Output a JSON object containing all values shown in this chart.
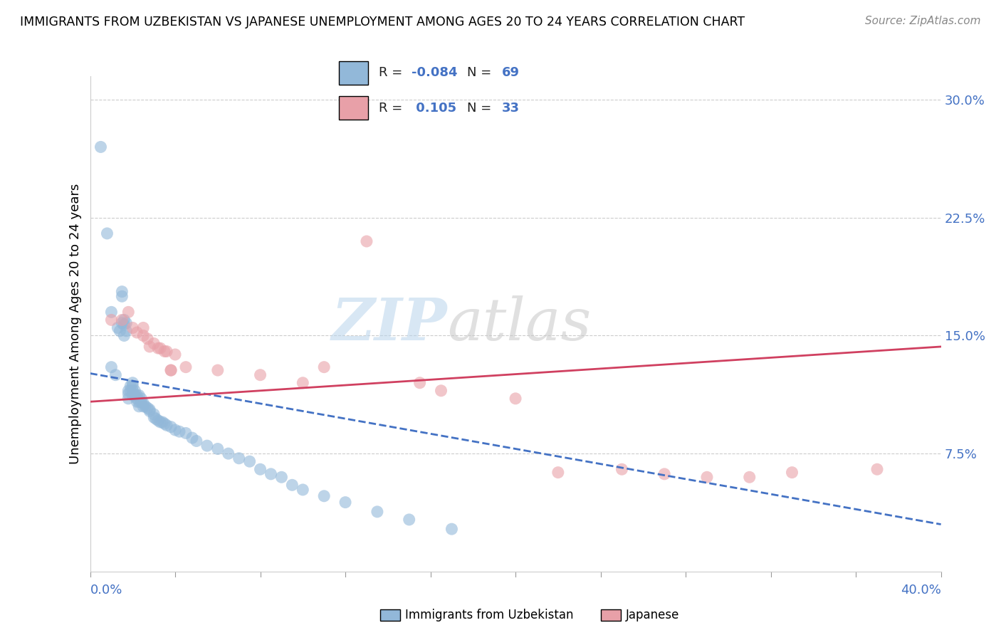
{
  "title": "IMMIGRANTS FROM UZBEKISTAN VS JAPANESE UNEMPLOYMENT AMONG AGES 20 TO 24 YEARS CORRELATION CHART",
  "source": "Source: ZipAtlas.com",
  "ylabel": "Unemployment Among Ages 20 to 24 years",
  "ytick_vals": [
    0.075,
    0.15,
    0.225,
    0.3
  ],
  "ytick_labels": [
    "7.5%",
    "15.0%",
    "22.5%",
    "30.0%"
  ],
  "xlim": [
    0.0,
    0.4
  ],
  "ylim": [
    0.0,
    0.315
  ],
  "color_blue": "#92b8d9",
  "color_pink": "#e8a0a8",
  "color_blue_line": "#4472c4",
  "color_pink_line": "#d04060",
  "watermark_zip": "ZIP",
  "watermark_atlas": "atlas",
  "blue_points_x": [
    0.005,
    0.008,
    0.01,
    0.012,
    0.013,
    0.014,
    0.015,
    0.015,
    0.015,
    0.016,
    0.016,
    0.016,
    0.017,
    0.017,
    0.018,
    0.018,
    0.018,
    0.019,
    0.019,
    0.02,
    0.02,
    0.02,
    0.02,
    0.021,
    0.021,
    0.022,
    0.022,
    0.022,
    0.023,
    0.023,
    0.023,
    0.024,
    0.024,
    0.025,
    0.025,
    0.026,
    0.027,
    0.028,
    0.028,
    0.03,
    0.03,
    0.031,
    0.032,
    0.033,
    0.034,
    0.035,
    0.036,
    0.038,
    0.04,
    0.042,
    0.045,
    0.048,
    0.05,
    0.055,
    0.06,
    0.065,
    0.07,
    0.075,
    0.08,
    0.085,
    0.09,
    0.095,
    0.1,
    0.11,
    0.12,
    0.135,
    0.15,
    0.17,
    0.01
  ],
  "blue_points_y": [
    0.27,
    0.215,
    0.13,
    0.125,
    0.155,
    0.153,
    0.178,
    0.175,
    0.158,
    0.16,
    0.157,
    0.15,
    0.158,
    0.153,
    0.115,
    0.113,
    0.11,
    0.118,
    0.115,
    0.12,
    0.118,
    0.115,
    0.112,
    0.115,
    0.112,
    0.112,
    0.11,
    0.108,
    0.112,
    0.108,
    0.105,
    0.11,
    0.108,
    0.107,
    0.105,
    0.105,
    0.104,
    0.103,
    0.102,
    0.1,
    0.098,
    0.097,
    0.096,
    0.095,
    0.095,
    0.094,
    0.093,
    0.092,
    0.09,
    0.089,
    0.088,
    0.085,
    0.083,
    0.08,
    0.078,
    0.075,
    0.072,
    0.07,
    0.065,
    0.062,
    0.06,
    0.055,
    0.052,
    0.048,
    0.044,
    0.038,
    0.033,
    0.027,
    0.165
  ],
  "pink_points_x": [
    0.01,
    0.015,
    0.018,
    0.02,
    0.022,
    0.025,
    0.025,
    0.027,
    0.028,
    0.03,
    0.032,
    0.033,
    0.035,
    0.036,
    0.038,
    0.038,
    0.04,
    0.045,
    0.06,
    0.08,
    0.1,
    0.11,
    0.13,
    0.155,
    0.165,
    0.2,
    0.22,
    0.25,
    0.27,
    0.29,
    0.31,
    0.33,
    0.37
  ],
  "pink_points_y": [
    0.16,
    0.16,
    0.165,
    0.155,
    0.152,
    0.155,
    0.15,
    0.148,
    0.143,
    0.145,
    0.142,
    0.142,
    0.14,
    0.14,
    0.128,
    0.128,
    0.138,
    0.13,
    0.128,
    0.125,
    0.12,
    0.13,
    0.21,
    0.12,
    0.115,
    0.11,
    0.063,
    0.065,
    0.062,
    0.06,
    0.06,
    0.063,
    0.065
  ],
  "blue_line_x": [
    0.0,
    0.4
  ],
  "blue_line_y": [
    0.126,
    0.03
  ],
  "pink_line_x": [
    0.0,
    0.4
  ],
  "pink_line_y": [
    0.108,
    0.143
  ]
}
